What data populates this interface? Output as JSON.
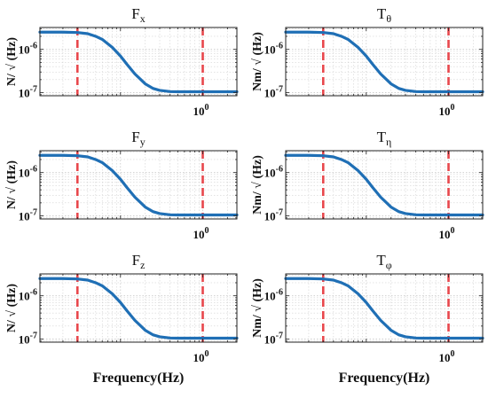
{
  "colors": {
    "curve": "#1f6fb5",
    "band_marker": "#e8474c",
    "grid": "#c8c8c8",
    "axis": "#222222"
  },
  "chart_data": [
    {
      "type": "line",
      "title_main": "F",
      "title_sub": "x",
      "ylabel": "N/ √ (Hz)",
      "xlabel": "",
      "x_scale": "log",
      "y_scale": "log",
      "xlim": [
        0.0105,
        2.6
      ],
      "ylim": [
        8.5e-08,
        3.2e-06
      ],
      "x_ticks": [
        {
          "value": 1,
          "label_base": "10",
          "label_exp": "0"
        }
      ],
      "y_ticks": [
        {
          "value": 1e-06,
          "label_base": "10",
          "label_exp": "-6"
        },
        {
          "value": 1e-07,
          "label_base": "10",
          "label_exp": "-7"
        }
      ],
      "vlines": [
        0.03,
        1.0
      ],
      "grid": true,
      "series": [
        {
          "x": [
            0.0105,
            0.02,
            0.03,
            0.04,
            0.05,
            0.06,
            0.08,
            0.1,
            0.12,
            0.15,
            0.2,
            0.25,
            0.3,
            0.4,
            0.5,
            0.7,
            1.0,
            1.5,
            2.0,
            2.6
          ],
          "y": [
            2.5e-06,
            2.5e-06,
            2.45e-06,
            2.3e-06,
            2e-06,
            1.7e-06,
            1.1e-06,
            7e-07,
            4.5e-07,
            2.7e-07,
            1.6e-07,
            1.25e-07,
            1.13e-07,
            1.06e-07,
            1.05e-07,
            1.05e-07,
            1.05e-07,
            1.05e-07,
            1.05e-07,
            1.05e-07
          ]
        }
      ]
    },
    {
      "type": "line",
      "title_main": "T",
      "title_sub": "θ",
      "ylabel": "Nm/ √ (Hz)",
      "xlabel": "",
      "x_scale": "log",
      "y_scale": "log",
      "xlim": [
        0.0105,
        2.6
      ],
      "ylim": [
        8.5e-08,
        3.2e-06
      ],
      "x_ticks": [
        {
          "value": 1,
          "label_base": "10",
          "label_exp": "0"
        }
      ],
      "y_ticks": [
        {
          "value": 1e-06,
          "label_base": "10",
          "label_exp": "-6"
        },
        {
          "value": 1e-07,
          "label_base": "10",
          "label_exp": "-7"
        }
      ],
      "vlines": [
        0.03,
        1.0
      ],
      "grid": true,
      "series": [
        {
          "x": [
            0.0105,
            0.02,
            0.03,
            0.04,
            0.05,
            0.06,
            0.08,
            0.1,
            0.12,
            0.15,
            0.2,
            0.25,
            0.3,
            0.4,
            0.5,
            0.7,
            1.0,
            1.5,
            2.0,
            2.6
          ],
          "y": [
            2.5e-06,
            2.5e-06,
            2.45e-06,
            2.3e-06,
            2e-06,
            1.7e-06,
            1.1e-06,
            7e-07,
            4.5e-07,
            2.7e-07,
            1.6e-07,
            1.25e-07,
            1.13e-07,
            1.06e-07,
            1.05e-07,
            1.05e-07,
            1.05e-07,
            1.05e-07,
            1.05e-07,
            1.05e-07
          ]
        }
      ]
    },
    {
      "type": "line",
      "title_main": "F",
      "title_sub": "y",
      "ylabel": "N/ √ (Hz)",
      "xlabel": "",
      "x_scale": "log",
      "y_scale": "log",
      "xlim": [
        0.0105,
        2.6
      ],
      "ylim": [
        8.5e-08,
        3.2e-06
      ],
      "x_ticks": [
        {
          "value": 1,
          "label_base": "10",
          "label_exp": "0"
        }
      ],
      "y_ticks": [
        {
          "value": 1e-06,
          "label_base": "10",
          "label_exp": "-6"
        },
        {
          "value": 1e-07,
          "label_base": "10",
          "label_exp": "-7"
        }
      ],
      "vlines": [
        0.03,
        1.0
      ],
      "grid": true,
      "series": [
        {
          "x": [
            0.0105,
            0.02,
            0.03,
            0.04,
            0.05,
            0.06,
            0.08,
            0.1,
            0.12,
            0.15,
            0.2,
            0.25,
            0.3,
            0.4,
            0.5,
            0.7,
            1.0,
            1.5,
            2.0,
            2.6
          ],
          "y": [
            2.5e-06,
            2.5e-06,
            2.45e-06,
            2.3e-06,
            2e-06,
            1.7e-06,
            1.1e-06,
            7e-07,
            4.5e-07,
            2.7e-07,
            1.6e-07,
            1.25e-07,
            1.13e-07,
            1.06e-07,
            1.05e-07,
            1.05e-07,
            1.05e-07,
            1.05e-07,
            1.05e-07,
            1.05e-07
          ]
        }
      ]
    },
    {
      "type": "line",
      "title_main": "T",
      "title_sub": "η",
      "ylabel": "Nm/ √ (Hz)",
      "xlabel": "",
      "x_scale": "log",
      "y_scale": "log",
      "xlim": [
        0.0105,
        2.6
      ],
      "ylim": [
        8.5e-08,
        3.2e-06
      ],
      "x_ticks": [
        {
          "value": 1,
          "label_base": "10",
          "label_exp": "0"
        }
      ],
      "y_ticks": [
        {
          "value": 1e-06,
          "label_base": "10",
          "label_exp": "-6"
        },
        {
          "value": 1e-07,
          "label_base": "10",
          "label_exp": "-7"
        }
      ],
      "vlines": [
        0.03,
        1.0
      ],
      "grid": true,
      "series": [
        {
          "x": [
            0.0105,
            0.02,
            0.03,
            0.04,
            0.05,
            0.06,
            0.08,
            0.1,
            0.12,
            0.15,
            0.2,
            0.25,
            0.3,
            0.4,
            0.5,
            0.7,
            1.0,
            1.5,
            2.0,
            2.6
          ],
          "y": [
            2.5e-06,
            2.5e-06,
            2.45e-06,
            2.3e-06,
            2e-06,
            1.7e-06,
            1.1e-06,
            7e-07,
            4.5e-07,
            2.7e-07,
            1.6e-07,
            1.25e-07,
            1.13e-07,
            1.06e-07,
            1.05e-07,
            1.05e-07,
            1.05e-07,
            1.05e-07,
            1.05e-07,
            1.05e-07
          ]
        }
      ]
    },
    {
      "type": "line",
      "title_main": "F",
      "title_sub": "z",
      "ylabel": "N/ √ (Hz)",
      "xlabel": "Frequency(Hz)",
      "x_scale": "log",
      "y_scale": "log",
      "xlim": [
        0.0105,
        2.6
      ],
      "ylim": [
        8.5e-08,
        3.2e-06
      ],
      "x_ticks": [
        {
          "value": 1,
          "label_base": "10",
          "label_exp": "0"
        }
      ],
      "y_ticks": [
        {
          "value": 1e-06,
          "label_base": "10",
          "label_exp": "-6"
        },
        {
          "value": 1e-07,
          "label_base": "10",
          "label_exp": "-7"
        }
      ],
      "vlines": [
        0.03,
        1.0
      ],
      "grid": true,
      "series": [
        {
          "x": [
            0.0105,
            0.02,
            0.03,
            0.04,
            0.05,
            0.06,
            0.08,
            0.1,
            0.12,
            0.15,
            0.2,
            0.25,
            0.3,
            0.4,
            0.5,
            0.7,
            1.0,
            1.5,
            2.0,
            2.6
          ],
          "y": [
            2.5e-06,
            2.5e-06,
            2.45e-06,
            2.3e-06,
            2e-06,
            1.7e-06,
            1.1e-06,
            7e-07,
            4.5e-07,
            2.7e-07,
            1.6e-07,
            1.25e-07,
            1.13e-07,
            1.06e-07,
            1.05e-07,
            1.05e-07,
            1.05e-07,
            1.05e-07,
            1.05e-07,
            1.05e-07
          ]
        }
      ]
    },
    {
      "type": "line",
      "title_main": "T",
      "title_sub": "φ",
      "ylabel": "Nm/ √ (Hz)",
      "xlabel": "Frequency(Hz)",
      "x_scale": "log",
      "y_scale": "log",
      "xlim": [
        0.0105,
        2.6
      ],
      "ylim": [
        8.5e-08,
        3.2e-06
      ],
      "x_ticks": [
        {
          "value": 1,
          "label_base": "10",
          "label_exp": "0"
        }
      ],
      "y_ticks": [
        {
          "value": 1e-06,
          "label_base": "10",
          "label_exp": "-6"
        },
        {
          "value": 1e-07,
          "label_base": "10",
          "label_exp": "-7"
        }
      ],
      "vlines": [
        0.03,
        1.0
      ],
      "grid": true,
      "series": [
        {
          "x": [
            0.0105,
            0.02,
            0.03,
            0.04,
            0.05,
            0.06,
            0.08,
            0.1,
            0.12,
            0.15,
            0.2,
            0.25,
            0.3,
            0.4,
            0.5,
            0.7,
            1.0,
            1.5,
            2.0,
            2.6
          ],
          "y": [
            2.5e-06,
            2.5e-06,
            2.45e-06,
            2.3e-06,
            2e-06,
            1.7e-06,
            1.1e-06,
            7e-07,
            4.5e-07,
            2.7e-07,
            1.6e-07,
            1.25e-07,
            1.13e-07,
            1.06e-07,
            1.05e-07,
            1.05e-07,
            1.05e-07,
            1.05e-07,
            1.05e-07,
            1.05e-07
          ]
        }
      ]
    }
  ]
}
